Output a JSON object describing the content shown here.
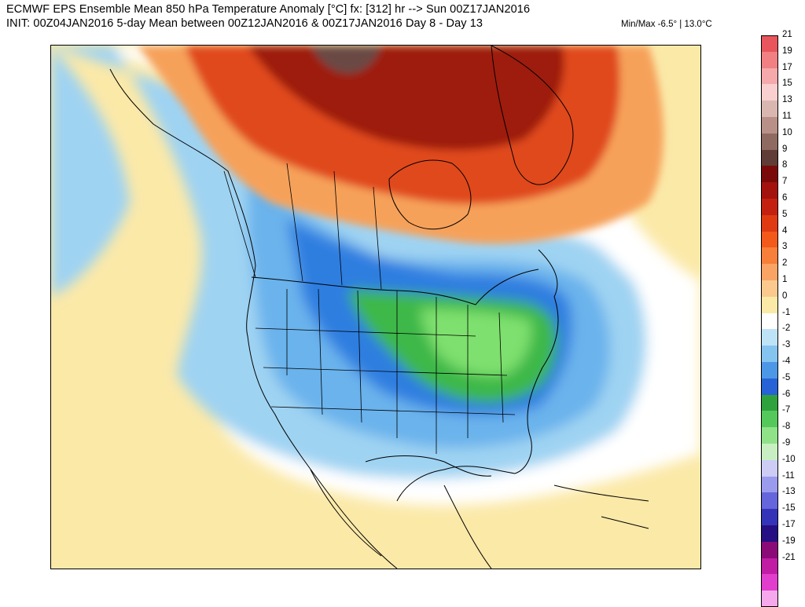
{
  "header": {
    "title": "ECMWF EPS Ensemble Mean 850 hPa Temperature Anomaly [°C] fx: [312] hr --> Sun 00Z17JAN2016",
    "subtitle": "INIT: 00Z04JAN2016 5-day Mean between 00Z12JAN2016 & 00Z17JAN2016   Day 8 - Day 13",
    "minmax": "Min/Max -6.5° | 13.0°C"
  },
  "map": {
    "region": "North America",
    "colors": {
      "ocean_warm": "#fbe9a8",
      "near_zero": "#ffffff",
      "cold_light": "#9fd3f2",
      "cold_mid": "#6ab3ec",
      "cold_strong": "#2e7ee0",
      "cold_green": "#3cb84a",
      "cold_green_light": "#7ee06e",
      "warm_orange": "#f6a15a",
      "warm_red": "#e04a1c",
      "warm_dark": "#9e1a0c",
      "warm_brown": "#6b4a44"
    }
  },
  "legend": {
    "items": [
      {
        "label": "21",
        "color": "#e8555c"
      },
      {
        "label": "19",
        "color": "#f08082"
      },
      {
        "label": "17",
        "color": "#f6a9aa"
      },
      {
        "label": "15",
        "color": "#f9cfcf"
      },
      {
        "label": "13",
        "color": "#d9b7b0"
      },
      {
        "label": "11",
        "color": "#b99087"
      },
      {
        "label": "10",
        "color": "#8f6a60"
      },
      {
        "label": "9",
        "color": "#5f3c35"
      },
      {
        "label": "8",
        "color": "#7a0a0a"
      },
      {
        "label": "7",
        "color": "#a3120d"
      },
      {
        "label": "6",
        "color": "#c4200f"
      },
      {
        "label": "5",
        "color": "#df3a12"
      },
      {
        "label": "4",
        "color": "#f2591a"
      },
      {
        "label": "3",
        "color": "#f77f3a"
      },
      {
        "label": "2",
        "color": "#f9a464"
      },
      {
        "label": "1",
        "color": "#fbc98d"
      },
      {
        "label": "0",
        "color": "#fbe9a8"
      },
      {
        "label": "-1",
        "color": "#ffffff"
      },
      {
        "label": "-2",
        "color": "#bfe3f6"
      },
      {
        "label": "-3",
        "color": "#86c4f0"
      },
      {
        "label": "-4",
        "color": "#4d98e6"
      },
      {
        "label": "-5",
        "color": "#2763d6"
      },
      {
        "label": "-6",
        "color": "#2fa23e"
      },
      {
        "label": "-7",
        "color": "#54c85a"
      },
      {
        "label": "-8",
        "color": "#8fe288"
      },
      {
        "label": "-9",
        "color": "#c8efc2"
      },
      {
        "label": "-10",
        "color": "#ccccf4"
      },
      {
        "label": "-11",
        "color": "#9b9bee"
      },
      {
        "label": "-13",
        "color": "#6565dc"
      },
      {
        "label": "-15",
        "color": "#3434b8"
      },
      {
        "label": "-17",
        "color": "#260f82"
      },
      {
        "label": "-19",
        "color": "#8a0a78"
      },
      {
        "label": "-21",
        "color": "#c01ca4"
      },
      {
        "label": "",
        "color": "#e23ecd"
      },
      {
        "label": "",
        "color": "#f5a8ec"
      }
    ]
  }
}
